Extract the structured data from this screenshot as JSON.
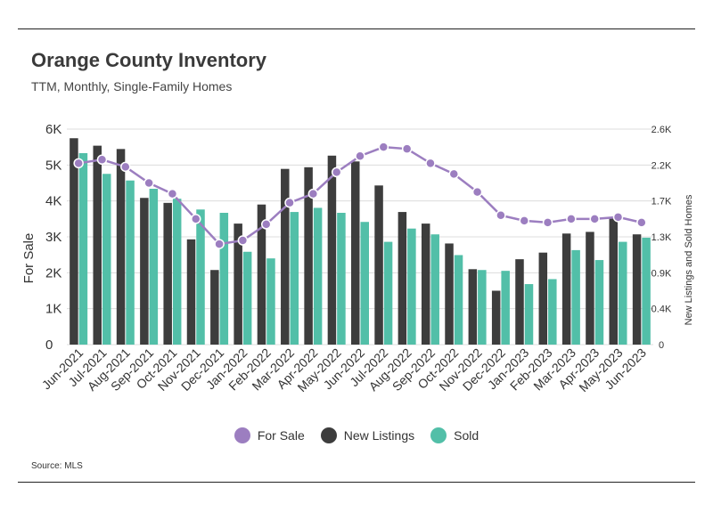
{
  "title": "Orange County Inventory",
  "subtitle": "TTM, Monthly, Single-Family Homes",
  "source": "Source: MLS",
  "colors": {
    "for_sale": "#9c7ec0",
    "new_listings": "#3d3d3d",
    "sold": "#52bfa8"
  },
  "chart_data": {
    "type": "bar",
    "title": "Orange County Inventory",
    "subtitle": "TTM, Monthly, Single-Family Homes",
    "categories": [
      "Jun-2021",
      "Jul-2021",
      "Aug-2021",
      "Sep-2021",
      "Oct-2021",
      "Nov-2021",
      "Dec-2021",
      "Jan-2022",
      "Feb-2022",
      "Mar-2022",
      "Apr-2022",
      "May-2022",
      "Jun-2022",
      "Jul-2022",
      "Aug-2022",
      "Sep-2022",
      "Oct-2022",
      "Nov-2022",
      "Dec-2022",
      "Jan-2023",
      "Feb-2023",
      "Mar-2023",
      "Apr-2023",
      "May-2023",
      "Jun-2023"
    ],
    "ylabel_left": "For Sale",
    "ylabel_right": "New Listings and Sold Homes",
    "left_axis": {
      "min": 0,
      "max": 6000,
      "ticks": [
        0,
        1000,
        2000,
        3000,
        4000,
        5000,
        6000
      ],
      "tick_labels": [
        "0",
        "1K",
        "2K",
        "3K",
        "4K",
        "5K",
        "6K"
      ]
    },
    "right_axis": {
      "min": 0,
      "max": 2600,
      "ticks": [
        0,
        433,
        867,
        1300,
        1733,
        2167,
        2600
      ],
      "tick_labels": [
        "0",
        "0.4K",
        "0.9K",
        "1.3K",
        "1.7K",
        "2.2K",
        "2.6K"
      ]
    },
    "grid": true,
    "legend_position": "bottom",
    "series": [
      {
        "name": "For Sale",
        "type": "line",
        "axis": "left",
        "values": [
          5050,
          5150,
          4950,
          4500,
          4200,
          3500,
          2800,
          2900,
          3350,
          3950,
          4200,
          4800,
          5250,
          5500,
          5450,
          5050,
          4750,
          4250,
          3600,
          3450,
          3400,
          3500,
          3500,
          3550,
          3400
        ]
      },
      {
        "name": "New Listings",
        "type": "bar",
        "axis": "right",
        "values": [
          2490,
          2400,
          2360,
          1770,
          1710,
          1270,
          900,
          1460,
          1690,
          2120,
          2140,
          2280,
          2210,
          1920,
          1600,
          1460,
          1220,
          910,
          650,
          1030,
          1110,
          1340,
          1360,
          1520,
          1330
        ]
      },
      {
        "name": "Sold",
        "type": "bar",
        "axis": "right",
        "values": [
          2310,
          2060,
          1980,
          1880,
          1760,
          1630,
          1590,
          1120,
          1040,
          1600,
          1650,
          1590,
          1480,
          1240,
          1400,
          1330,
          1080,
          900,
          890,
          730,
          790,
          1140,
          1020,
          1240,
          1290
        ]
      }
    ]
  }
}
